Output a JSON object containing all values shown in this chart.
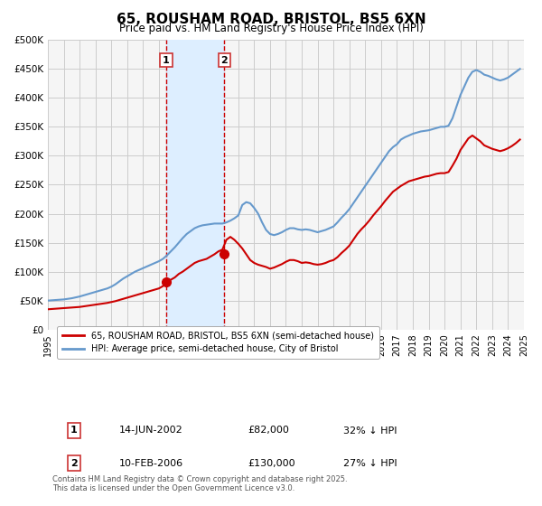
{
  "title": "65, ROUSHAM ROAD, BRISTOL, BS5 6XN",
  "subtitle": "Price paid vs. HM Land Registry's House Price Index (HPI)",
  "legend_label_red": "65, ROUSHAM ROAD, BRISTOL, BS5 6XN (semi-detached house)",
  "legend_label_blue": "HPI: Average price, semi-detached house, City of Bristol",
  "footnote": "Contains HM Land Registry data © Crown copyright and database right 2025.\nThis data is licensed under the Open Government Licence v3.0.",
  "xlabel": "",
  "ylabel": "",
  "ylim": [
    0,
    500000
  ],
  "yticks": [
    0,
    50000,
    100000,
    150000,
    200000,
    250000,
    300000,
    350000,
    400000,
    450000,
    500000
  ],
  "ytick_labels": [
    "£0",
    "£50K",
    "£100K",
    "£150K",
    "£200K",
    "£250K",
    "£300K",
    "£350K",
    "£400K",
    "£450K",
    "£500K"
  ],
  "xtick_years": [
    1995,
    1996,
    1997,
    1998,
    1999,
    2000,
    2001,
    2002,
    2003,
    2004,
    2005,
    2006,
    2007,
    2008,
    2009,
    2010,
    2011,
    2012,
    2013,
    2014,
    2015,
    2016,
    2017,
    2018,
    2019,
    2020,
    2021,
    2022,
    2023,
    2024,
    2025
  ],
  "red_color": "#cc0000",
  "blue_color": "#6699cc",
  "shade_color": "#ddeeff",
  "vline_color": "#cc0000",
  "grid_color": "#cccccc",
  "bg_color": "#f5f5f5",
  "purchase1": {
    "date_x": 2002.45,
    "price": 82000,
    "label": "1",
    "date_str": "14-JUN-2002",
    "price_str": "£82,000",
    "hpi_str": "32% ↓ HPI"
  },
  "purchase2": {
    "date_x": 2006.11,
    "price": 130000,
    "label": "2",
    "date_str": "10-FEB-2006",
    "price_str": "£130,000",
    "hpi_str": "27% ↓ HPI"
  },
  "hpi_data": {
    "x": [
      1995.0,
      1995.25,
      1995.5,
      1995.75,
      1996.0,
      1996.25,
      1996.5,
      1996.75,
      1997.0,
      1997.25,
      1997.5,
      1997.75,
      1998.0,
      1998.25,
      1998.5,
      1998.75,
      1999.0,
      1999.25,
      1999.5,
      1999.75,
      2000.0,
      2000.25,
      2000.5,
      2000.75,
      2001.0,
      2001.25,
      2001.5,
      2001.75,
      2002.0,
      2002.25,
      2002.5,
      2002.75,
      2003.0,
      2003.25,
      2003.5,
      2003.75,
      2004.0,
      2004.25,
      2004.5,
      2004.75,
      2005.0,
      2005.25,
      2005.5,
      2005.75,
      2006.0,
      2006.25,
      2006.5,
      2006.75,
      2007.0,
      2007.25,
      2007.5,
      2007.75,
      2008.0,
      2008.25,
      2008.5,
      2008.75,
      2009.0,
      2009.25,
      2009.5,
      2009.75,
      2010.0,
      2010.25,
      2010.5,
      2010.75,
      2011.0,
      2011.25,
      2011.5,
      2011.75,
      2012.0,
      2012.25,
      2012.5,
      2012.75,
      2013.0,
      2013.25,
      2013.5,
      2013.75,
      2014.0,
      2014.25,
      2014.5,
      2014.75,
      2015.0,
      2015.25,
      2015.5,
      2015.75,
      2016.0,
      2016.25,
      2016.5,
      2016.75,
      2017.0,
      2017.25,
      2017.5,
      2017.75,
      2018.0,
      2018.25,
      2018.5,
      2018.75,
      2019.0,
      2019.25,
      2019.5,
      2019.75,
      2020.0,
      2020.25,
      2020.5,
      2020.75,
      2021.0,
      2021.25,
      2021.5,
      2021.75,
      2022.0,
      2022.25,
      2022.5,
      2022.75,
      2023.0,
      2023.25,
      2023.5,
      2023.75,
      2024.0,
      2024.25,
      2024.5,
      2024.75
    ],
    "y": [
      50000,
      50500,
      51000,
      51500,
      52000,
      53000,
      54000,
      55500,
      57000,
      59000,
      61000,
      63000,
      65000,
      67000,
      69000,
      71000,
      74000,
      78000,
      83000,
      88000,
      92000,
      96000,
      100000,
      103000,
      106000,
      109000,
      112000,
      115000,
      118000,
      122000,
      128000,
      135000,
      142000,
      150000,
      158000,
      165000,
      170000,
      175000,
      178000,
      180000,
      181000,
      182000,
      183000,
      183000,
      183000,
      185000,
      188000,
      192000,
      197000,
      215000,
      220000,
      218000,
      210000,
      200000,
      185000,
      172000,
      165000,
      163000,
      165000,
      168000,
      172000,
      175000,
      175000,
      173000,
      172000,
      173000,
      172000,
      170000,
      168000,
      170000,
      172000,
      175000,
      178000,
      185000,
      193000,
      200000,
      208000,
      218000,
      228000,
      238000,
      248000,
      258000,
      268000,
      278000,
      288000,
      298000,
      308000,
      315000,
      320000,
      328000,
      332000,
      335000,
      338000,
      340000,
      342000,
      343000,
      344000,
      346000,
      348000,
      350000,
      350000,
      352000,
      365000,
      385000,
      405000,
      420000,
      435000,
      445000,
      448000,
      445000,
      440000,
      438000,
      435000,
      432000,
      430000,
      432000,
      435000,
      440000,
      445000,
      450000
    ]
  },
  "red_data": {
    "x": [
      1995.0,
      1995.25,
      1995.5,
      1995.75,
      1996.0,
      1996.25,
      1996.5,
      1996.75,
      1997.0,
      1997.25,
      1997.5,
      1997.75,
      1998.0,
      1998.25,
      1998.5,
      1998.75,
      1999.0,
      1999.25,
      1999.5,
      1999.75,
      2000.0,
      2000.25,
      2000.5,
      2000.75,
      2001.0,
      2001.25,
      2001.5,
      2001.75,
      2002.0,
      2002.25,
      2002.5,
      2002.75,
      2003.0,
      2003.25,
      2003.5,
      2003.75,
      2004.0,
      2004.25,
      2004.5,
      2004.75,
      2005.0,
      2005.25,
      2005.5,
      2005.75,
      2006.0,
      2006.25,
      2006.5,
      2006.75,
      2007.0,
      2007.25,
      2007.5,
      2007.75,
      2008.0,
      2008.25,
      2008.5,
      2008.75,
      2009.0,
      2009.25,
      2009.5,
      2009.75,
      2010.0,
      2010.25,
      2010.5,
      2010.75,
      2011.0,
      2011.25,
      2011.5,
      2011.75,
      2012.0,
      2012.25,
      2012.5,
      2012.75,
      2013.0,
      2013.25,
      2013.5,
      2013.75,
      2014.0,
      2014.25,
      2014.5,
      2014.75,
      2015.0,
      2015.25,
      2015.5,
      2015.75,
      2016.0,
      2016.25,
      2016.5,
      2016.75,
      2017.0,
      2017.25,
      2017.5,
      2017.75,
      2018.0,
      2018.25,
      2018.5,
      2018.75,
      2019.0,
      2019.25,
      2019.5,
      2019.75,
      2020.0,
      2020.25,
      2020.5,
      2020.75,
      2021.0,
      2021.25,
      2021.5,
      2021.75,
      2022.0,
      2022.25,
      2022.5,
      2022.75,
      2023.0,
      2023.25,
      2023.5,
      2023.75,
      2024.0,
      2024.25,
      2024.5,
      2024.75
    ],
    "y": [
      35000,
      35500,
      36000,
      36500,
      37000,
      37500,
      38000,
      38500,
      39000,
      40000,
      41000,
      42000,
      43000,
      44000,
      45000,
      46000,
      47500,
      49000,
      51000,
      53000,
      55000,
      57000,
      59000,
      61000,
      63000,
      65000,
      67000,
      69000,
      71000,
      75000,
      82000,
      86000,
      90000,
      96000,
      100000,
      105000,
      110000,
      115000,
      118000,
      120000,
      122000,
      126000,
      130000,
      135000,
      138000,
      155000,
      160000,
      155000,
      148000,
      140000,
      130000,
      120000,
      115000,
      112000,
      110000,
      108000,
      105000,
      107000,
      110000,
      113000,
      117000,
      120000,
      120000,
      118000,
      115000,
      116000,
      115000,
      113000,
      112000,
      113000,
      115000,
      118000,
      120000,
      125000,
      132000,
      138000,
      145000,
      155000,
      165000,
      173000,
      180000,
      188000,
      197000,
      205000,
      213000,
      222000,
      230000,
      238000,
      243000,
      248000,
      252000,
      256000,
      258000,
      260000,
      262000,
      264000,
      265000,
      267000,
      269000,
      270000,
      270000,
      272000,
      283000,
      295000,
      310000,
      320000,
      330000,
      335000,
      330000,
      325000,
      318000,
      315000,
      312000,
      310000,
      308000,
      310000,
      313000,
      317000,
      322000,
      328000
    ]
  }
}
